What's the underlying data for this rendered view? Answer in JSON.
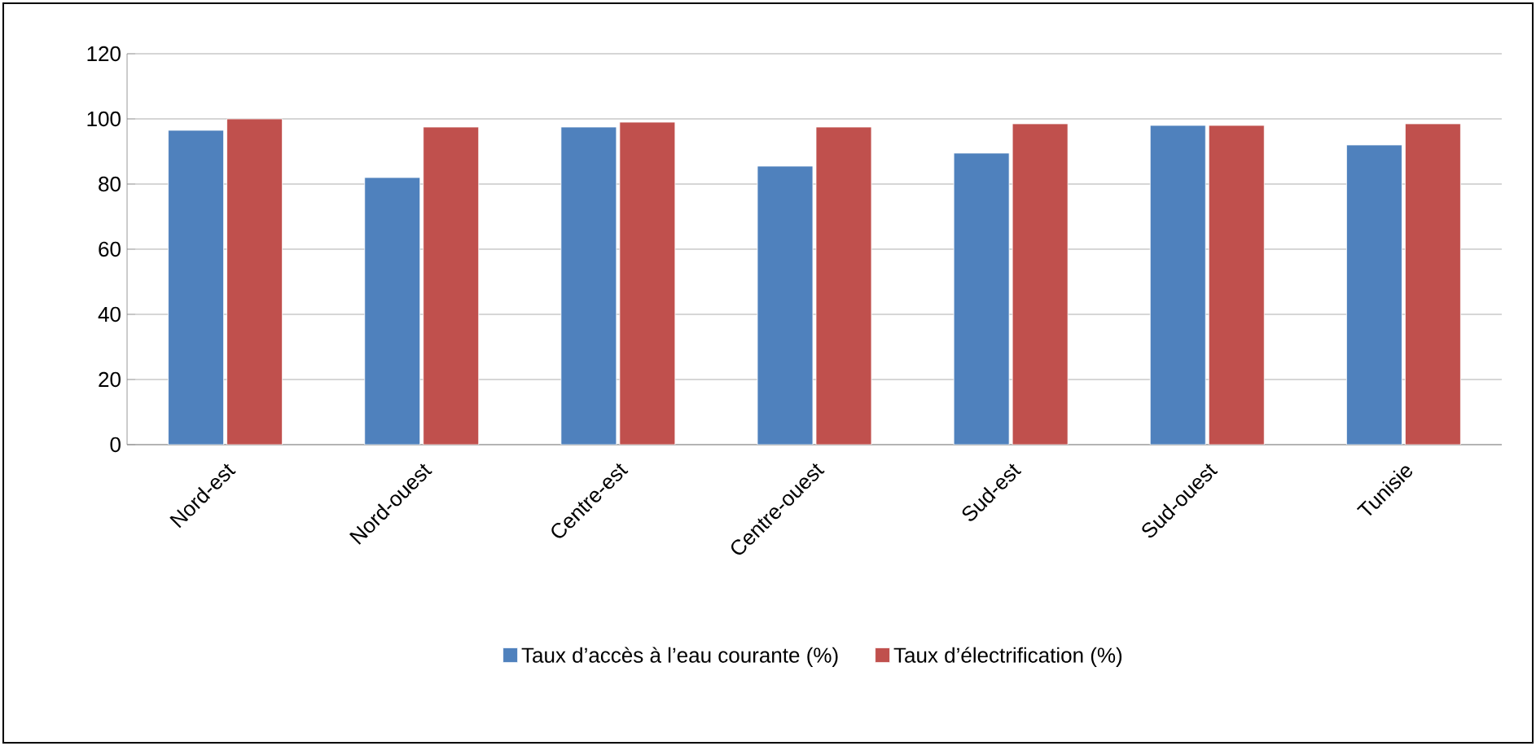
{
  "chart_data": {
    "type": "bar",
    "categories": [
      "Nord-est",
      "Nord-ouest",
      "Centre-est",
      "Centre-ouest",
      "Sud-est",
      "Sud-ouest",
      "Tunisie"
    ],
    "series": [
      {
        "name": "Taux d’accès à l’eau courante (%)",
        "color": "#4f81bd",
        "values": [
          96.5,
          82,
          97.5,
          85.5,
          89.5,
          98,
          92
        ]
      },
      {
        "name": "Taux d’électrification (%)",
        "color": "#c0504d",
        "values": [
          100,
          97.5,
          99,
          97.5,
          98.5,
          98,
          98.5
        ]
      }
    ],
    "ylim": [
      0,
      120
    ],
    "yticks": [
      0,
      20,
      40,
      60,
      80,
      100,
      120
    ],
    "grid": "y",
    "legend": "bottom"
  }
}
